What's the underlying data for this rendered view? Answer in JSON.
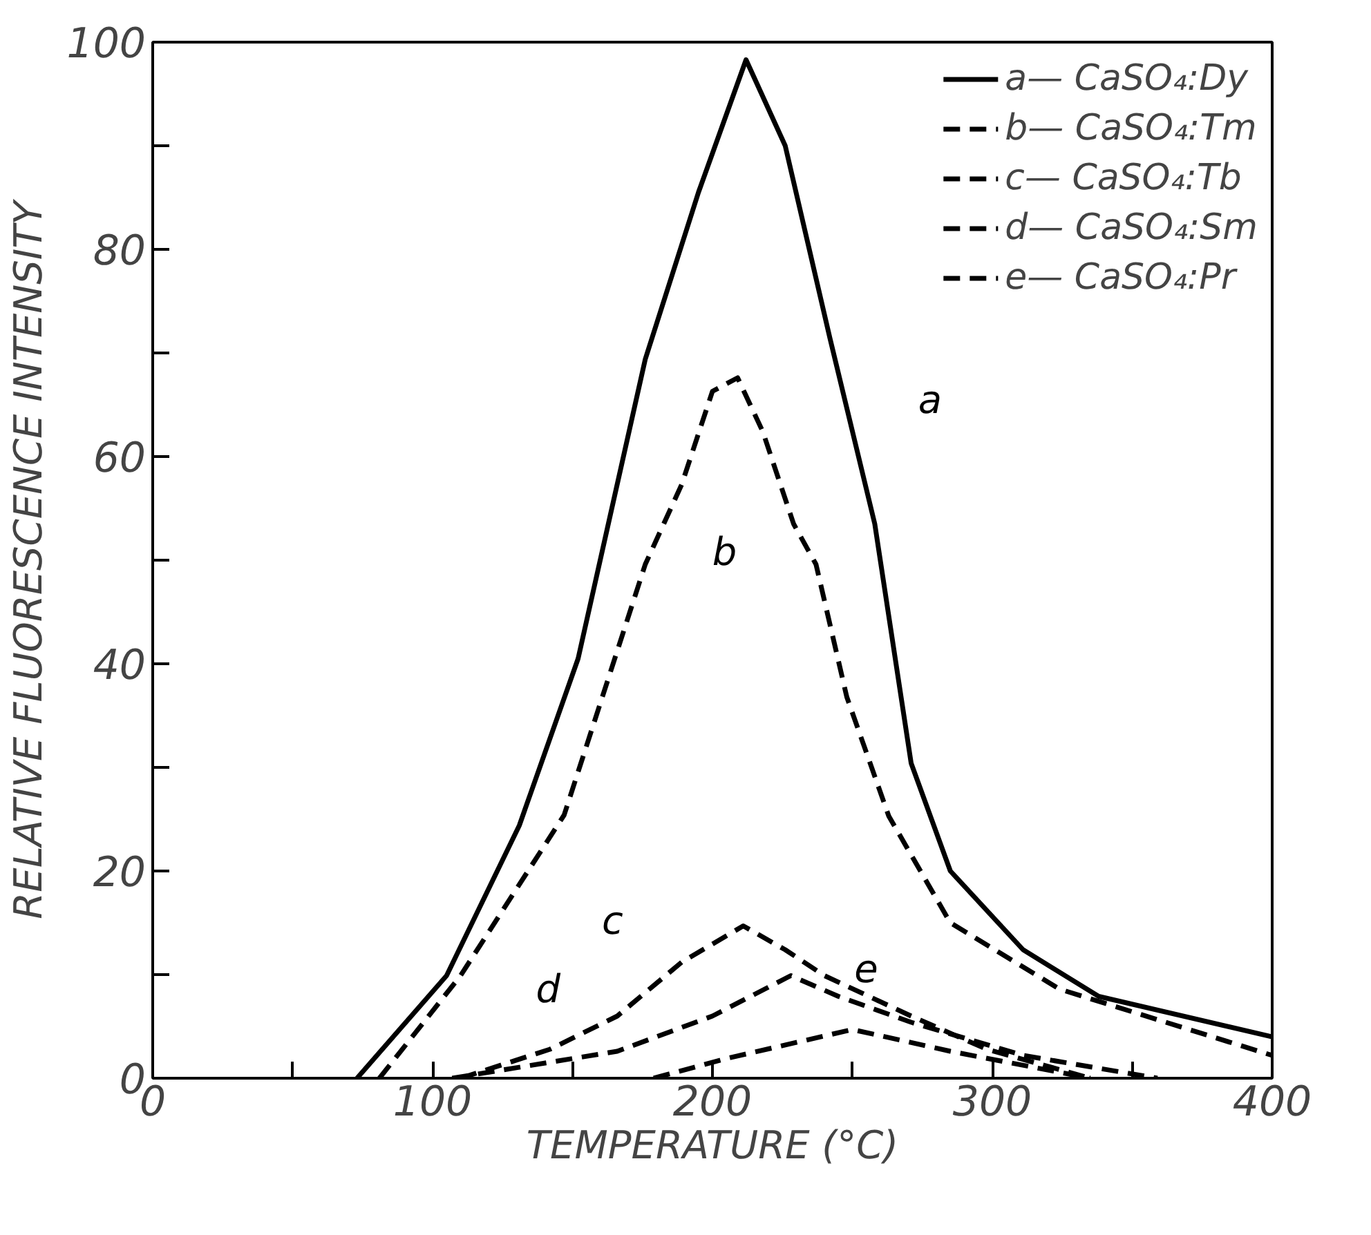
{
  "chart_data": {
    "type": "line",
    "xlabel": "TEMPERATURE (°C)",
    "ylabel": "RELATIVE FLUORESCENCE INTENSITY",
    "xlim": [
      0,
      400
    ],
    "ylim": [
      0,
      100
    ],
    "xticks": [
      0,
      {
        "value": 50,
        "label": null
      },
      100,
      {
        "value": 150,
        "label": null
      },
      200,
      {
        "value": 250,
        "label": null
      },
      300,
      {
        "value": 350,
        "label": null
      },
      400
    ],
    "yticks": [
      0,
      {
        "value": 10,
        "label": null
      },
      20,
      {
        "value": 30,
        "label": null
      },
      40,
      {
        "value": 50,
        "label": null
      },
      60,
      {
        "value": 70,
        "label": null
      },
      80,
      {
        "value": 90,
        "label": null
      },
      100
    ],
    "grid": false,
    "legend": "top right",
    "marker": "none",
    "series": [
      {
        "name": "a— CaSO₄:Dy",
        "color": "#000000",
        "line_style": "solid",
        "x": [
          73,
          105,
          131,
          152,
          176,
          195,
          212,
          226,
          242,
          258,
          271,
          285,
          311,
          338,
          400
        ],
        "values": [
          0,
          9.9,
          24.4,
          40.5,
          69.4,
          85.5,
          98.3,
          90,
          71.4,
          53.5,
          30.4,
          20,
          12.4,
          7.9,
          4
        ]
      },
      {
        "name": "b— CaSO₄:Tm",
        "color": "#000000",
        "line_style": "dashed",
        "x": [
          81,
          110,
          147,
          176,
          189,
          200,
          209,
          218,
          229,
          237,
          248,
          263,
          285,
          324,
          400
        ],
        "values": [
          0,
          9.9,
          25.4,
          49.6,
          57.3,
          66.3,
          67.6,
          62.4,
          53.5,
          49.6,
          36.8,
          25.3,
          15,
          8.6,
          2.2
        ]
      },
      {
        "name": "c— CaSO₄:Tb",
        "color": "#000000",
        "line_style": "dashed",
        "x": [
          110,
          142,
          166,
          189,
          211,
          226,
          240,
          271,
          298,
          335
        ],
        "values": [
          0,
          2.8,
          6,
          11.2,
          14.7,
          12.4,
          9.9,
          6,
          2.8,
          0
        ]
      },
      {
        "name": "d— CaSO₄:Sm",
        "color": "#000000",
        "line_style": "dashed",
        "x": [
          107,
          166,
          200,
          228,
          245,
          271,
          311,
          359
        ],
        "values": [
          0,
          2.6,
          6,
          9.9,
          7.9,
          5.4,
          2.2,
          0
        ]
      },
      {
        "name": "e— CaSO₄:Pr",
        "color": "#000000",
        "line_style": "dashed",
        "x": [
          179,
          205,
          250,
          285,
          335
        ],
        "values": [
          0,
          1.9,
          4.7,
          2.6,
          0
        ]
      }
    ],
    "annotations": [
      {
        "text": "a",
        "x": 258,
        "y": 53.5
      },
      {
        "text": "b",
        "x": 229,
        "y": 53.5
      },
      {
        "text": "c",
        "x": 189,
        "y": 11.2
      },
      {
        "text": "d",
        "x": 166,
        "y": 2.6
      },
      {
        "text": "e",
        "x": 250,
        "y": 4.7
      }
    ]
  }
}
